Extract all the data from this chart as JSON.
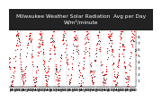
{
  "title": "Milwaukee Weather Solar Radiation  Avg per Day W/m²/minute",
  "title_fontsize": 4.2,
  "title_bg": "#222222",
  "title_color": "#ffffff",
  "background_color": "#ffffff",
  "dot_color_primary": "#ff0000",
  "dot_color_secondary": "#000000",
  "ylim": [
    0,
    9
  ],
  "ytick_labels": [
    "1",
    "2",
    "3",
    "4",
    "5",
    "6",
    "7",
    "8"
  ],
  "ytick_values": [
    1,
    2,
    3,
    4,
    5,
    6,
    7,
    8
  ],
  "ylabel_fontsize": 3.2,
  "xlabel_fontsize": 2.8,
  "num_years": 11,
  "seed": 17
}
